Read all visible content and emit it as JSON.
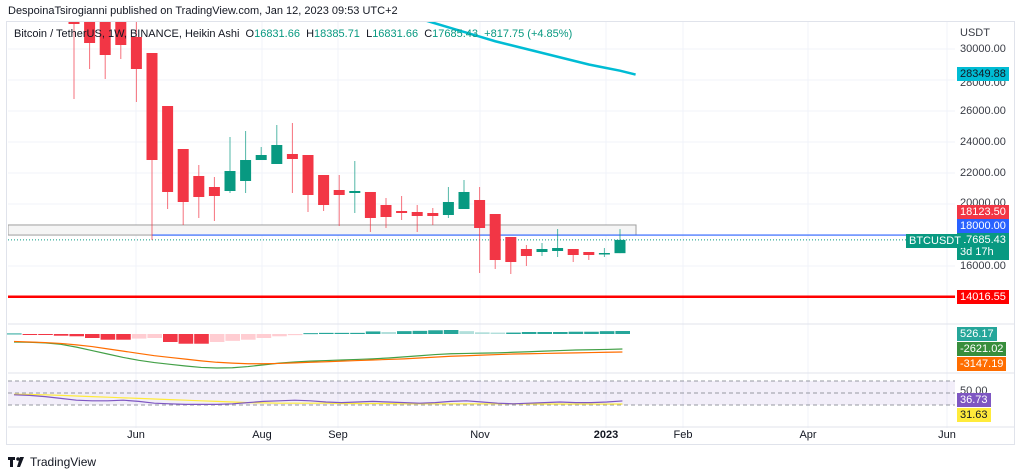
{
  "published": "DespoinaTsirogianni published on TradingView.com, Jan 12, 2023 09:53 UTC+2",
  "legend": {
    "symbol": "Bitcoin / TetherUS, 1W, BINANCE, Heikin Ashi",
    "o_label": "O",
    "o_value": "16831.66",
    "h_label": "H",
    "h_value": "18385.71",
    "l_label": "L",
    "l_value": "16831.66",
    "c_label": "C",
    "c_value": "17685.43",
    "change": "+817.75 (+4.85%)"
  },
  "price_axis": {
    "currency": "USDT",
    "labels": [
      "30000.00",
      "28000.00",
      "26000.00",
      "24000.00",
      "22000.00",
      "20000.00",
      "16000.00"
    ],
    "rsi_label": "50.00"
  },
  "tags": {
    "ma": {
      "text": "28349.88",
      "color": "#00bcd4"
    },
    "red_level": {
      "text": "18123.50",
      "color": "#f23645"
    },
    "blue_level": {
      "text": "18000.00",
      "color": "#2962ff"
    },
    "last_price": {
      "text": "17685.43",
      "countdown": "3d 17h",
      "color": "#089981"
    },
    "symbol_tag": {
      "text": "BTCUSDT",
      "color": "#089981"
    },
    "support": {
      "text": "14016.55",
      "color": "#ff0000"
    },
    "macd_hist": {
      "text": "526.17",
      "color": "#26a69a"
    },
    "macd_line": {
      "text": "-2621.02",
      "color": "#43a047"
    },
    "macd_signal": {
      "text": "-3147.19",
      "color": "#ff6d00"
    },
    "rsi": {
      "text": "36.73",
      "color": "#7e57c2"
    },
    "rsi_ma": {
      "text": "31.63",
      "color": "#ffeb3b"
    }
  },
  "time_axis": [
    "Jun",
    "Aug",
    "Sep",
    "Nov",
    "2023",
    "Feb",
    "Apr",
    "Jun"
  ],
  "footer": {
    "brand": "TradingView"
  },
  "chart_data": {
    "type": "candlestick",
    "style": "Heikin Ashi",
    "interval": "1W",
    "ylim": [
      13000,
      31500
    ],
    "up_color": "#089981",
    "down_color": "#f23645",
    "ohlc": [
      [
        31742,
        31742,
        26775,
        31613
      ],
      [
        31742,
        31742,
        28710,
        30387
      ],
      [
        31742,
        31742,
        28065,
        29613
      ],
      [
        31742,
        31742,
        29355,
        30258
      ],
      [
        30774,
        31742,
        26581,
        28710
      ],
      [
        29742,
        29742,
        17680,
        22840
      ],
      [
        26323,
        26323,
        19680,
        20777
      ],
      [
        23550,
        23550,
        18648,
        20131
      ],
      [
        21809,
        22518,
        19100,
        20454
      ],
      [
        21099,
        21744,
        18906,
        20519
      ],
      [
        20841,
        24324,
        20712,
        22131
      ],
      [
        21486,
        24711,
        20712,
        22840
      ],
      [
        22840,
        23679,
        22840,
        23163
      ],
      [
        22583,
        25098,
        22583,
        23808
      ],
      [
        23228,
        25227,
        20712,
        22905
      ],
      [
        23163,
        23163,
        19487,
        20583
      ],
      [
        21873,
        21873,
        19551,
        19938
      ],
      [
        20906,
        21873,
        18584,
        20583
      ],
      [
        20712,
        22776,
        19422,
        20841
      ],
      [
        20777,
        20777,
        18196,
        19100
      ],
      [
        19938,
        20390,
        18455,
        19164
      ],
      [
        19551,
        20519,
        18971,
        19422
      ],
      [
        19487,
        19938,
        18196,
        19229
      ],
      [
        19422,
        19745,
        18648,
        19229
      ],
      [
        19293,
        21099,
        19100,
        20131
      ],
      [
        19680,
        21551,
        19680,
        20777
      ],
      [
        20261,
        21099,
        15552,
        18454
      ],
      [
        19357,
        19357,
        15810,
        16390
      ],
      [
        17874,
        17874,
        15487,
        16261
      ],
      [
        17100,
        17358,
        16003,
        16649
      ],
      [
        16906,
        17487,
        16649,
        17100
      ],
      [
        16971,
        18390,
        16584,
        17164
      ],
      [
        17100,
        17100,
        16261,
        16713
      ],
      [
        16906,
        16906,
        16390,
        16713
      ],
      [
        16777,
        17164,
        16584,
        16842
      ],
      [
        16831.66,
        18385.71,
        16831.66,
        17685.43
      ]
    ],
    "moving_average": {
      "color": "#00bcd4",
      "start_index": 21,
      "values": [
        32300,
        32000,
        31700,
        31400,
        31100,
        30800,
        30500,
        30250,
        30000,
        29750,
        29500,
        29250,
        29000,
        28800,
        28600,
        28349.88
      ]
    },
    "levels": {
      "support": 14016.55,
      "blue": 18000,
      "zone": [
        18000,
        18650
      ],
      "last": 17685.43
    },
    "macd": {
      "histogram": [
        100,
        -100,
        -100,
        -300,
        -400,
        -700,
        -1000,
        -1000,
        -800,
        -700,
        -1400,
        -1700,
        -1700,
        -1400,
        -1200,
        -1000,
        -700,
        -400,
        -200,
        150,
        200,
        200,
        200,
        450,
        350,
        500,
        550,
        650,
        700,
        500,
        300,
        250,
        250,
        350,
        350,
        350,
        400,
        400,
        500,
        526.17
      ],
      "macd": [
        -1400,
        -1450,
        -1550,
        -1800,
        -2300,
        -2900,
        -3500,
        -4100,
        -4600,
        -5000,
        -5300,
        -5600,
        -5850,
        -5950,
        -5900,
        -5700,
        -5400,
        -5100,
        -4900,
        -4750,
        -4650,
        -4550,
        -4450,
        -4350,
        -4200,
        -4000,
        -3800,
        -3600,
        -3450,
        -3400,
        -3350,
        -3300,
        -3200,
        -3100,
        -3000,
        -2900,
        -2800,
        -2750,
        -2700,
        -2621.02
      ],
      "signal": [
        -1300,
        -1400,
        -1500,
        -1650,
        -1900,
        -2200,
        -2600,
        -3000,
        -3400,
        -3800,
        -4100,
        -4400,
        -4700,
        -4950,
        -5100,
        -5200,
        -5200,
        -5150,
        -5050,
        -4950,
        -4850,
        -4750,
        -4650,
        -4550,
        -4450,
        -4350,
        -4200,
        -4050,
        -3900,
        -3800,
        -3700,
        -3600,
        -3500,
        -3450,
        -3400,
        -3350,
        -3300,
        -3250,
        -3200,
        -3147.19
      ]
    },
    "rsi": {
      "bands": [
        70,
        50,
        30
      ],
      "rsi": [
        47,
        46,
        44,
        41,
        38,
        37,
        37,
        38,
        36,
        33,
        32,
        31,
        31,
        31,
        32,
        34,
        36,
        37,
        38,
        37,
        35,
        34,
        35,
        36,
        35,
        34,
        33,
        34,
        36,
        37,
        35,
        33,
        32,
        33,
        34,
        35,
        34,
        34,
        35,
        36.73
      ],
      "ma": [
        48,
        47.5,
        47,
        46,
        45,
        44,
        43,
        42,
        41,
        40,
        39,
        38,
        37,
        36,
        35,
        34,
        33.5,
        33,
        33,
        33,
        33,
        32.5,
        32.5,
        32.5,
        32.5,
        32,
        32,
        32,
        32,
        32,
        32,
        32,
        32,
        31.8,
        31.7,
        31.7,
        31.6,
        31.6,
        31.6,
        31.63
      ]
    }
  }
}
